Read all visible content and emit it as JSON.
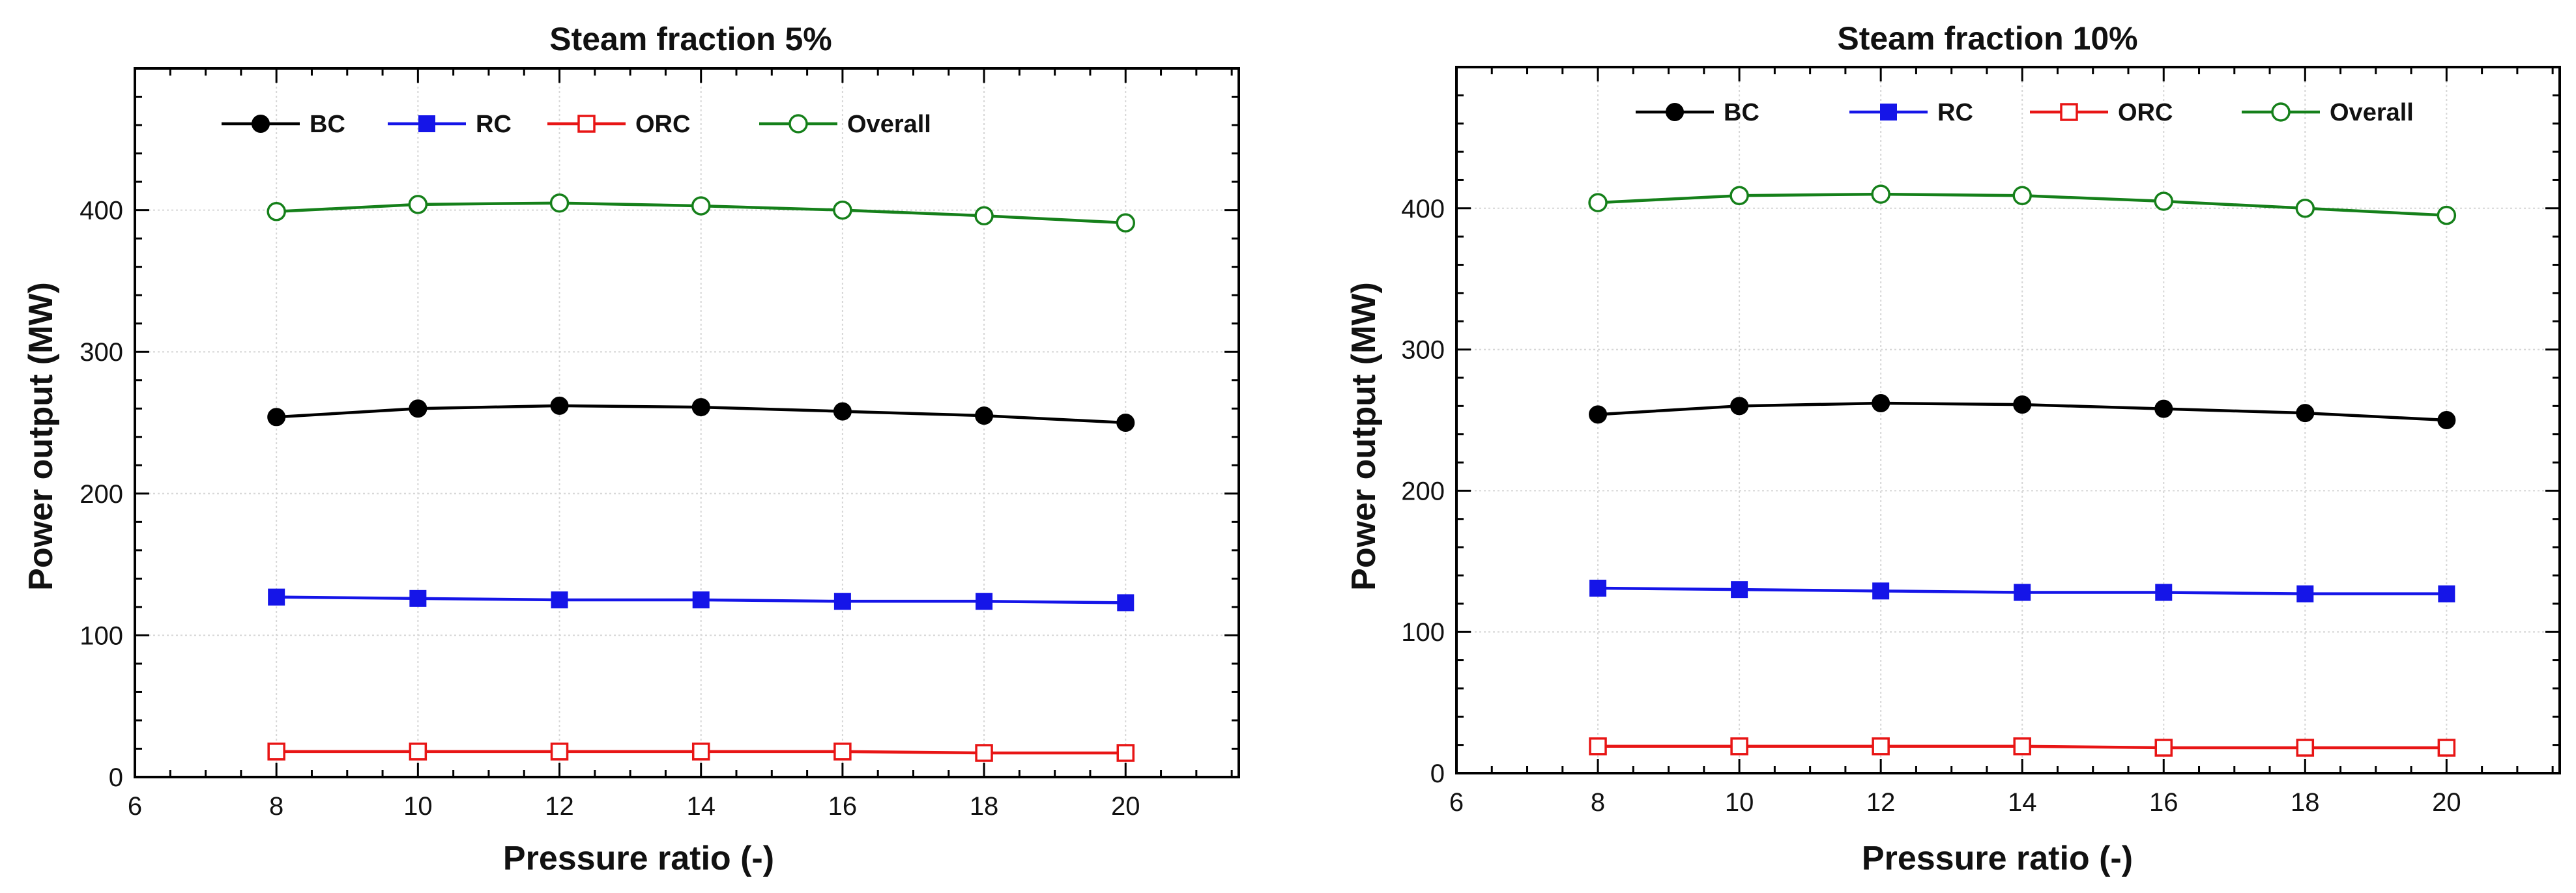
{
  "chart_data": [
    {
      "type": "line",
      "title": "Steam fraction 5%",
      "xlabel": "Pressure ratio (-)",
      "ylabel": "Power output (MW)",
      "xlim": [
        6,
        21.6
      ],
      "ylim": [
        0,
        500
      ],
      "x_ticks": [
        "6",
        "8",
        "10",
        "12",
        "14",
        "16",
        "18",
        "20"
      ],
      "y_ticks": [
        "0",
        "100",
        "200",
        "300",
        "400"
      ],
      "grid": true,
      "x": [
        8,
        10,
        12,
        14,
        16,
        18,
        20
      ],
      "series": [
        {
          "name": "BC",
          "color": "#000000",
          "marker": "filled-circle",
          "values": [
            254,
            260,
            262,
            261,
            258,
            255,
            250
          ]
        },
        {
          "name": "RC",
          "color": "#1515e8",
          "marker": "filled-square",
          "values": [
            127,
            126,
            125,
            125,
            124,
            124,
            123
          ]
        },
        {
          "name": "ORC",
          "color": "#e81515",
          "marker": "open-square",
          "values": [
            18,
            18,
            18,
            18,
            18,
            17,
            17
          ]
        },
        {
          "name": "Overall",
          "label": "Overall",
          "color": "#15801a",
          "marker": "open-circle",
          "values": [
            399,
            404,
            405,
            403,
            400,
            396,
            391
          ]
        }
      ]
    },
    {
      "type": "line",
      "title": "Steam fraction 10%",
      "xlabel": "Pressure ratio (-)",
      "ylabel": "Power output (MW)",
      "xlim": [
        6,
        21.6
      ],
      "ylim": [
        0,
        500
      ],
      "x_ticks": [
        "6",
        "8",
        "10",
        "12",
        "14",
        "16",
        "18",
        "20"
      ],
      "y_ticks": [
        "0",
        "100",
        "200",
        "300",
        "400"
      ],
      "grid": true,
      "x": [
        8,
        10,
        12,
        14,
        16,
        18,
        20
      ],
      "series": [
        {
          "name": "BC",
          "color": "#000000",
          "marker": "filled-circle",
          "values": [
            254,
            260,
            262,
            261,
            258,
            255,
            250
          ]
        },
        {
          "name": "RC",
          "color": "#1515e8",
          "marker": "filled-square",
          "values": [
            131,
            130,
            129,
            128,
            128,
            127,
            127
          ]
        },
        {
          "name": "ORC",
          "color": "#e81515",
          "marker": "open-square",
          "values": [
            19,
            19,
            19,
            19,
            18,
            18,
            18
          ]
        },
        {
          "name": "Overall",
          "label": "Overall",
          "color": "#15801a",
          "marker": "open-circle",
          "values": [
            404,
            409,
            410,
            409,
            405,
            400,
            395
          ]
        }
      ]
    }
  ]
}
